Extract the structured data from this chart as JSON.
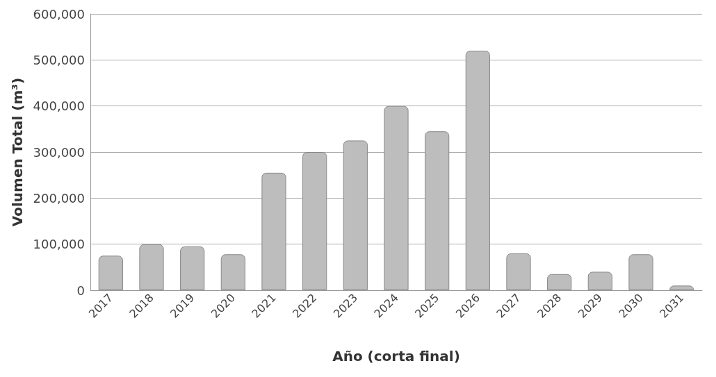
{
  "chart_data": {
    "type": "bar",
    "xlabel": "Año (corta final)",
    "ylabel": "Volumen Total (m³)",
    "categories": [
      "2017",
      "2018",
      "2019",
      "2020",
      "2021",
      "2022",
      "2023",
      "2024",
      "2025",
      "2026",
      "2027",
      "2028",
      "2029",
      "2030",
      "2031"
    ],
    "values": [
      75000,
      100000,
      95000,
      78000,
      255000,
      300000,
      325000,
      400000,
      345000,
      520000,
      80000,
      35000,
      40000,
      78000,
      10000
    ],
    "color": "#bdbdbd",
    "ylim": [
      0,
      600000
    ],
    "yticks": [
      0,
      {
        "value": 100000,
        "label": "100,000"
      },
      {
        "value": 200000,
        "label": "200,000"
      },
      {
        "value": 300000,
        "label": "300,000"
      },
      {
        "value": 400000,
        "label": "400,000"
      },
      {
        "value": 500000,
        "label": "500,000"
      },
      {
        "value": 600000,
        "label": "600,000"
      }
    ],
    "grid": "y"
  }
}
